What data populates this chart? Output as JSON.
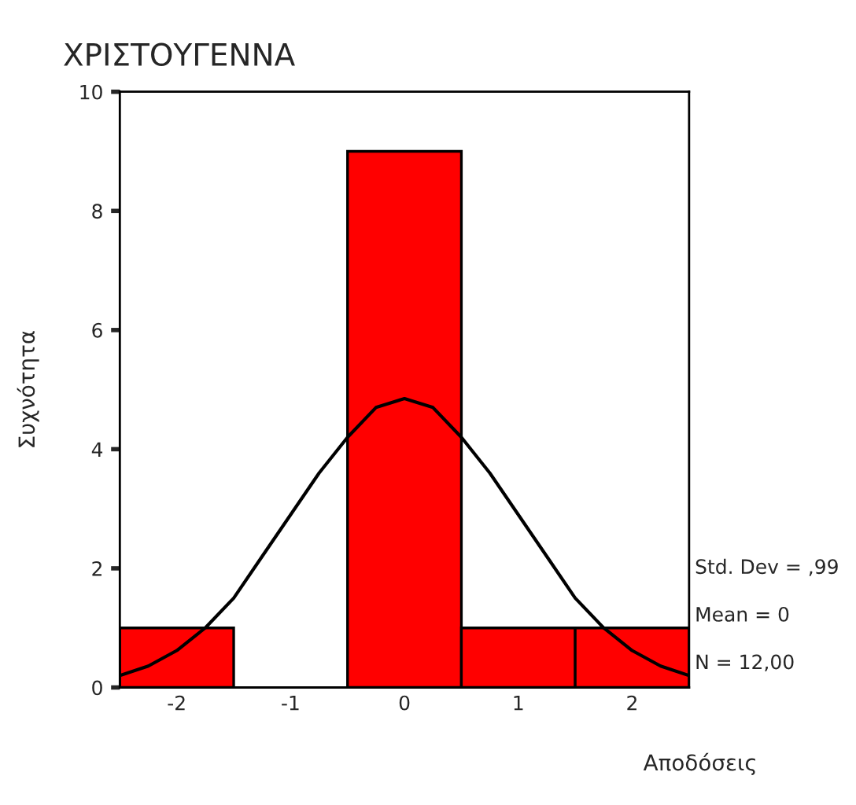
{
  "chart_data": {
    "type": "histogram",
    "title": "ΧΡΙΣΤΟΥΓΕΝΝΑ",
    "xlabel": "Αποδόσεις",
    "ylabel": "Συχνότητα",
    "bins": [
      -2.5,
      -1.5,
      -0.5,
      0.5,
      1.5,
      2.5
    ],
    "values": [
      1,
      0,
      9,
      1,
      1
    ],
    "color": "#ff0000",
    "xlim": [
      -2.5,
      2.5
    ],
    "xticks": [
      -2,
      -1,
      0,
      1,
      2
    ],
    "ylim": [
      0,
      10
    ],
    "yticks": [
      0,
      2,
      4,
      6,
      8,
      10
    ],
    "series": [
      {
        "type": "line",
        "color": "#000000",
        "x": [
          -2.5,
          -2.25,
          -2,
          -1.75,
          -1.5,
          -1.25,
          -1,
          -0.75,
          -0.5,
          -0.25,
          0,
          0.25,
          0.5,
          0.75,
          1,
          1.25,
          1.5,
          1.75,
          2,
          2.25,
          2.5
        ],
        "values": [
          0.2,
          0.36,
          0.62,
          1.0,
          1.5,
          2.2,
          2.9,
          3.6,
          4.2,
          4.7,
          4.85,
          4.7,
          4.2,
          3.6,
          2.9,
          2.2,
          1.5,
          1.0,
          0.62,
          0.36,
          0.2
        ]
      }
    ],
    "annotations": [
      "Std. Dev = ,99",
      "Mean = 0",
      "N = 12,00"
    ]
  }
}
